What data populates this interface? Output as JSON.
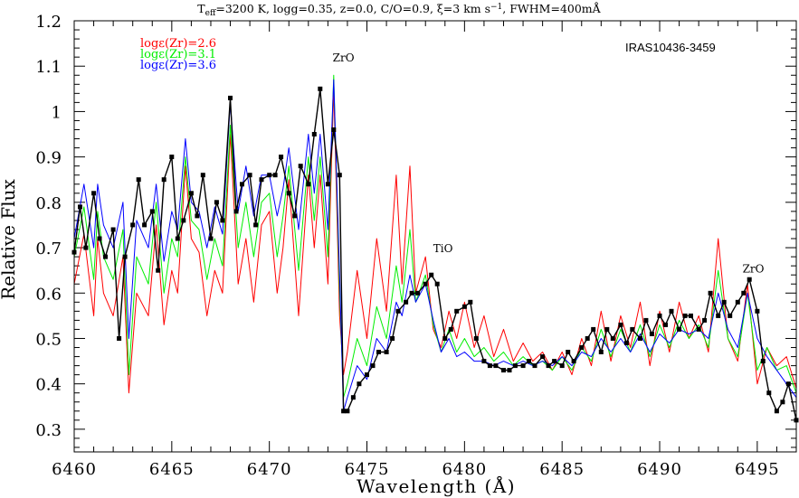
{
  "chart_data": {
    "type": "line",
    "title": {
      "pre": "T",
      "sub": "eff",
      "post": "=3200 K, logg=0.35, z=0.0, C/O=0.9, ξ=3 km s",
      "sup": "−1",
      "tail": ", FWHM=400mÅ"
    },
    "object_label": "IRAS10436-3459",
    "xlabel": "Wavelength (Å)",
    "ylabel": "Relative Flux",
    "xlim": [
      6460,
      6497
    ],
    "ylim": [
      0.25,
      1.2
    ],
    "x_ticks": [
      "6460",
      "6465",
      "6470",
      "6475",
      "6480",
      "6485",
      "6490",
      "6495"
    ],
    "y_ticks": [
      "0.3",
      "0.4",
      "0.5",
      "0.6",
      "0.7",
      "0.8",
      "0.9",
      "1",
      "1.1",
      "1.2"
    ],
    "annotations": [
      {
        "text": "ZrO",
        "x": 6473.8,
        "y": 1.11
      },
      {
        "text": "TiO",
        "x": 6478.9,
        "y": 0.69
      },
      {
        "text": "ZrO",
        "x": 6494.8,
        "y": 0.645
      }
    ],
    "legend_position": "top-left",
    "series": [
      {
        "name": "logε(Zr)=2.6",
        "color": "#ff0000",
        "x": [
          6460.0,
          6460.5,
          6461.0,
          6461.2,
          6461.5,
          6462.0,
          6462.5,
          6462.8,
          6463.2,
          6463.8,
          6464.2,
          6464.6,
          6465.0,
          6465.3,
          6465.7,
          6466.0,
          6466.4,
          6466.8,
          6467.2,
          6467.6,
          6468.0,
          6468.4,
          6468.8,
          6469.2,
          6469.6,
          6470.0,
          6470.4,
          6470.7,
          6471.0,
          6471.5,
          6472.0,
          6472.3,
          6472.6,
          6473.0,
          6473.3,
          6473.6,
          6473.8,
          6474.0,
          6474.5,
          6475.0,
          6475.5,
          6476.0,
          6476.5,
          6476.8,
          6477.2,
          6477.5,
          6478.0,
          6478.4,
          6478.8,
          6479.2,
          6479.6,
          6480.0,
          6480.5,
          6481.0,
          6481.5,
          6482.0,
          6482.5,
          6483.0,
          6483.5,
          6484.0,
          6484.5,
          6485.0,
          6485.5,
          6486.0,
          6486.5,
          6487.0,
          6487.5,
          6488.0,
          6488.5,
          6489.0,
          6489.5,
          6490.0,
          6490.5,
          6491.0,
          6491.5,
          6492.0,
          6492.5,
          6493.0,
          6493.5,
          6494.0,
          6494.5,
          6495.0,
          6495.5,
          6496.0,
          6496.5,
          6497.0
        ],
        "y": [
          0.62,
          0.73,
          0.55,
          0.72,
          0.6,
          0.55,
          0.68,
          0.38,
          0.6,
          0.55,
          0.75,
          0.53,
          0.65,
          0.6,
          0.88,
          0.72,
          0.69,
          0.55,
          0.65,
          0.6,
          0.95,
          0.62,
          0.72,
          0.58,
          0.75,
          0.78,
          0.6,
          0.7,
          0.85,
          0.55,
          0.86,
          0.7,
          0.86,
          0.62,
          1.05,
          0.55,
          0.42,
          0.47,
          0.65,
          0.5,
          0.72,
          0.56,
          0.86,
          0.62,
          0.88,
          0.6,
          0.68,
          0.52,
          0.48,
          0.56,
          0.5,
          0.58,
          0.48,
          0.55,
          0.46,
          0.52,
          0.45,
          0.49,
          0.45,
          0.47,
          0.43,
          0.47,
          0.42,
          0.5,
          0.44,
          0.56,
          0.45,
          0.55,
          0.48,
          0.58,
          0.44,
          0.56,
          0.47,
          0.58,
          0.5,
          0.55,
          0.47,
          0.72,
          0.5,
          0.45,
          0.62,
          0.4,
          0.48,
          0.44,
          0.46,
          0.39
        ]
      },
      {
        "name": "logε(Zr)=3.1",
        "color": "#00ee00",
        "x": [
          6460.0,
          6460.5,
          6461.0,
          6461.2,
          6461.5,
          6462.0,
          6462.5,
          6462.8,
          6463.2,
          6463.8,
          6464.2,
          6464.6,
          6465.0,
          6465.3,
          6465.7,
          6466.0,
          6466.4,
          6466.8,
          6467.2,
          6467.6,
          6468.0,
          6468.4,
          6468.8,
          6469.2,
          6469.6,
          6470.0,
          6470.4,
          6470.7,
          6471.0,
          6471.5,
          6472.0,
          6472.3,
          6472.6,
          6473.0,
          6473.3,
          6473.6,
          6473.8,
          6474.0,
          6474.5,
          6475.0,
          6475.5,
          6476.0,
          6476.5,
          6476.8,
          6477.2,
          6477.5,
          6478.0,
          6478.4,
          6478.8,
          6479.2,
          6479.6,
          6480.0,
          6480.5,
          6481.0,
          6481.5,
          6482.0,
          6482.5,
          6483.0,
          6483.5,
          6484.0,
          6484.5,
          6485.0,
          6485.5,
          6486.0,
          6486.5,
          6487.0,
          6487.5,
          6488.0,
          6488.5,
          6489.0,
          6489.5,
          6490.0,
          6490.5,
          6491.0,
          6491.5,
          6492.0,
          6492.5,
          6493.0,
          6493.5,
          6494.0,
          6494.5,
          6495.0,
          6495.5,
          6496.0,
          6496.5,
          6497.0
        ],
        "y": [
          0.68,
          0.79,
          0.63,
          0.78,
          0.68,
          0.63,
          0.74,
          0.42,
          0.68,
          0.62,
          0.8,
          0.6,
          0.72,
          0.68,
          0.9,
          0.76,
          0.74,
          0.63,
          0.72,
          0.66,
          0.97,
          0.7,
          0.8,
          0.68,
          0.8,
          0.82,
          0.68,
          0.77,
          0.88,
          0.65,
          0.9,
          0.76,
          0.9,
          0.68,
          1.08,
          0.6,
          0.37,
          0.4,
          0.5,
          0.44,
          0.57,
          0.5,
          0.66,
          0.58,
          0.74,
          0.58,
          0.64,
          0.53,
          0.47,
          0.52,
          0.47,
          0.5,
          0.46,
          0.48,
          0.45,
          0.47,
          0.44,
          0.46,
          0.44,
          0.45,
          0.43,
          0.46,
          0.43,
          0.48,
          0.45,
          0.52,
          0.46,
          0.52,
          0.47,
          0.53,
          0.46,
          0.53,
          0.48,
          0.54,
          0.5,
          0.53,
          0.48,
          0.65,
          0.5,
          0.46,
          0.6,
          0.43,
          0.48,
          0.43,
          0.44,
          0.38
        ]
      },
      {
        "name": "logε(Zr)=3.6",
        "color": "#0000ff",
        "x": [
          6460.0,
          6460.5,
          6461.0,
          6461.2,
          6461.5,
          6462.0,
          6462.5,
          6462.8,
          6463.2,
          6463.8,
          6464.2,
          6464.6,
          6465.0,
          6465.3,
          6465.7,
          6466.0,
          6466.4,
          6466.8,
          6467.2,
          6467.6,
          6468.0,
          6468.4,
          6468.8,
          6469.2,
          6469.6,
          6470.0,
          6470.4,
          6470.7,
          6471.0,
          6471.5,
          6472.0,
          6472.3,
          6472.6,
          6473.0,
          6473.3,
          6473.6,
          6473.8,
          6474.0,
          6474.5,
          6475.0,
          6475.5,
          6476.0,
          6476.5,
          6476.8,
          6477.2,
          6477.5,
          6478.0,
          6478.4,
          6478.8,
          6479.2,
          6479.6,
          6480.0,
          6480.5,
          6481.0,
          6481.5,
          6482.0,
          6482.5,
          6483.0,
          6483.5,
          6484.0,
          6484.5,
          6485.0,
          6485.5,
          6486.0,
          6486.5,
          6487.0,
          6487.5,
          6488.0,
          6488.5,
          6489.0,
          6489.5,
          6490.0,
          6490.5,
          6491.0,
          6491.5,
          6492.0,
          6492.5,
          6493.0,
          6493.5,
          6494.0,
          6494.5,
          6495.0,
          6495.5,
          6496.0,
          6496.5,
          6497.0
        ],
        "y": [
          0.72,
          0.84,
          0.7,
          0.84,
          0.75,
          0.7,
          0.8,
          0.5,
          0.76,
          0.7,
          0.84,
          0.67,
          0.78,
          0.74,
          0.94,
          0.8,
          0.78,
          0.7,
          0.79,
          0.73,
          1.02,
          0.78,
          0.88,
          0.77,
          0.86,
          0.86,
          0.77,
          0.83,
          0.92,
          0.74,
          0.95,
          0.82,
          0.95,
          0.74,
          1.07,
          0.64,
          0.34,
          0.37,
          0.44,
          0.41,
          0.5,
          0.47,
          0.58,
          0.55,
          0.64,
          0.58,
          0.62,
          0.54,
          0.47,
          0.5,
          0.46,
          0.47,
          0.45,
          0.45,
          0.44,
          0.45,
          0.44,
          0.45,
          0.44,
          0.45,
          0.44,
          0.46,
          0.44,
          0.47,
          0.46,
          0.5,
          0.47,
          0.5,
          0.47,
          0.51,
          0.47,
          0.51,
          0.49,
          0.52,
          0.51,
          0.52,
          0.5,
          0.6,
          0.52,
          0.48,
          0.6,
          0.5,
          0.46,
          0.43,
          0.4,
          0.37
        ]
      },
      {
        "name": "",
        "color": "#000000",
        "marker": "square",
        "x": [
          6460.0,
          6460.3,
          6460.6,
          6461.0,
          6461.3,
          6461.6,
          6462.0,
          6462.3,
          6462.6,
          6463.0,
          6463.3,
          6463.6,
          6464.0,
          6464.3,
          6464.6,
          6465.0,
          6465.3,
          6465.6,
          6466.0,
          6466.3,
          6466.6,
          6467.0,
          6467.3,
          6467.6,
          6468.0,
          6468.3,
          6468.6,
          6469.0,
          6469.3,
          6469.6,
          6470.0,
          6470.3,
          6470.6,
          6471.0,
          6471.3,
          6471.6,
          6472.0,
          6472.3,
          6472.6,
          6473.0,
          6473.3,
          6473.6,
          6473.8,
          6474.0,
          6474.3,
          6474.6,
          6475.0,
          6475.3,
          6475.6,
          6476.0,
          6476.3,
          6476.6,
          6477.0,
          6477.3,
          6477.6,
          6478.0,
          6478.3,
          6478.6,
          6479.0,
          6479.3,
          6479.6,
          6480.0,
          6480.3,
          6480.6,
          6481.0,
          6481.3,
          6481.6,
          6482.0,
          6482.3,
          6482.6,
          6483.0,
          6483.3,
          6483.6,
          6484.0,
          6484.3,
          6484.6,
          6485.0,
          6485.3,
          6485.6,
          6486.0,
          6486.3,
          6486.6,
          6487.0,
          6487.3,
          6487.6,
          6488.0,
          6488.3,
          6488.6,
          6489.0,
          6489.3,
          6489.6,
          6490.0,
          6490.3,
          6490.6,
          6491.0,
          6491.3,
          6491.6,
          6492.0,
          6492.3,
          6492.6,
          6493.0,
          6493.3,
          6493.6,
          6494.0,
          6494.3,
          6494.6,
          6495.0,
          6495.3,
          6495.6,
          6496.0,
          6496.3,
          6496.6,
          6497.0
        ],
        "y": [
          0.69,
          0.79,
          0.7,
          0.82,
          0.72,
          0.68,
          0.74,
          0.5,
          0.68,
          0.75,
          0.85,
          0.75,
          0.78,
          0.65,
          0.85,
          0.9,
          0.72,
          0.76,
          0.82,
          0.77,
          0.86,
          0.72,
          0.8,
          0.76,
          1.03,
          0.78,
          0.84,
          0.86,
          0.75,
          0.85,
          0.86,
          0.86,
          0.9,
          0.82,
          0.77,
          0.88,
          0.84,
          0.95,
          1.05,
          0.84,
          0.96,
          0.86,
          0.34,
          0.34,
          0.37,
          0.4,
          0.42,
          0.44,
          0.47,
          0.47,
          0.5,
          0.56,
          0.58,
          0.6,
          0.6,
          0.62,
          0.64,
          0.62,
          0.5,
          0.52,
          0.56,
          0.57,
          0.58,
          0.5,
          0.45,
          0.44,
          0.44,
          0.43,
          0.43,
          0.44,
          0.44,
          0.45,
          0.44,
          0.46,
          0.44,
          0.45,
          0.44,
          0.47,
          0.45,
          0.48,
          0.5,
          0.52,
          0.47,
          0.52,
          0.5,
          0.53,
          0.49,
          0.52,
          0.5,
          0.54,
          0.51,
          0.55,
          0.53,
          0.56,
          0.52,
          0.55,
          0.55,
          0.52,
          0.54,
          0.6,
          0.55,
          0.58,
          0.55,
          0.58,
          0.6,
          0.63,
          0.56,
          0.45,
          0.38,
          0.34,
          0.36,
          0.4,
          0.32
        ]
      }
    ]
  }
}
